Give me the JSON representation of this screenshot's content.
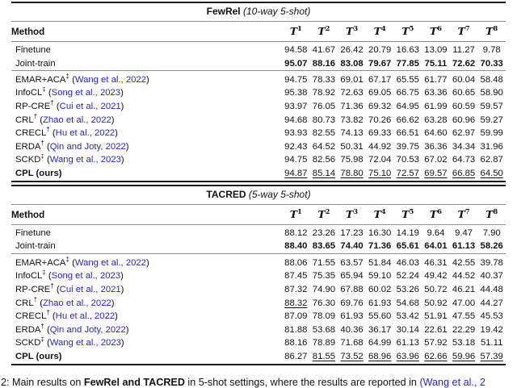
{
  "symbols": {
    "task": "T",
    "dagger": "†",
    "ddagger": "‡"
  },
  "caption": {
    "seg1": "2: Main results on ",
    "seg2": "FewRel and TACRED",
    "seg3": " in 5-shot settings, where the results are reported in ",
    "citation": "(Wang et al., 2"
  },
  "tables": [
    {
      "title": "FewRel",
      "setting": "(10-way 5-shot)",
      "method_header": "Method",
      "task_numbers": [
        "1",
        "2",
        "3",
        "4",
        "5",
        "6",
        "7",
        "8"
      ],
      "groups": [
        [
          {
            "method": "Finetune",
            "sup": "",
            "cite": "",
            "bold_method": false,
            "bold_values": false,
            "values": [
              "94.58",
              "41.67",
              "26.42",
              "20.79",
              "16.63",
              "13.09",
              "11.27",
              "9.78"
            ]
          },
          {
            "method": "Joint-train",
            "sup": "",
            "cite": "",
            "bold_method": false,
            "bold_values": true,
            "values": [
              "95.07",
              "88.16",
              "83.08",
              "79.67",
              "77.85",
              "75.11",
              "72.62",
              "70.33"
            ]
          }
        ],
        [
          {
            "method": "EMAR+ACA",
            "sup": "‡",
            "cite": "Wang et al., 2022",
            "bold_method": false,
            "bold_values": false,
            "values": [
              "94.75",
              "78.33",
              "69.01",
              "67.17",
              "65.55",
              "61.77",
              "60.04",
              "58.48"
            ]
          },
          {
            "method": "InfoCL",
            "sup": "‡",
            "cite": "Song et al., 2023",
            "bold_method": false,
            "bold_values": false,
            "values": [
              "95.38",
              "78.92",
              "72.63",
              "69.05",
              "66.75",
              "63.36",
              "60.65",
              "58.90"
            ]
          },
          {
            "method": "RP-CRE",
            "sup": "†",
            "cite": "Cui et al., 2021",
            "bold_method": false,
            "bold_values": false,
            "values": [
              "93.97",
              "76.05",
              "71.36",
              "69.32",
              "64.95",
              "61.99",
              "60.59",
              "59.57"
            ]
          },
          {
            "method": "CRL",
            "sup": "†",
            "cite": "Zhao et al., 2022",
            "bold_method": false,
            "bold_values": false,
            "values": [
              "94.68",
              "80.73",
              "73.82",
              "70.26",
              "66.62",
              "63.28",
              "60.96",
              "59.27"
            ]
          },
          {
            "method": "CRECL",
            "sup": "†",
            "cite": "Hu et al., 2022",
            "bold_method": false,
            "bold_values": false,
            "values": [
              "93.93",
              "82.55",
              "74.13",
              "69.33",
              "66.51",
              "64.60",
              "62.97",
              "59.99"
            ]
          },
          {
            "method": "ERDA",
            "sup": "†",
            "cite": "Qin and Joty, 2022",
            "bold_method": false,
            "bold_values": false,
            "values": [
              "92.43",
              "64.52",
              "50.31",
              "44.92",
              "39.75",
              "36.36",
              "34.34",
              "31.96"
            ]
          },
          {
            "method": "SCKD",
            "sup": "‡",
            "cite": "Wang et al., 2023",
            "bold_method": false,
            "bold_values": false,
            "values": [
              "94.75",
              "82.56",
              "75.98",
              "72.04",
              "70.53",
              "67.02",
              "64.73",
              "62.87"
            ]
          },
          {
            "method": "CPL (ours)",
            "sup": "",
            "cite": "",
            "bold_method": true,
            "bold_values": false,
            "underline": [
              true,
              true,
              true,
              true,
              true,
              true,
              true,
              true
            ],
            "values": [
              "94.87",
              "85.14",
              "78.80",
              "75.10",
              "72.57",
              "69.57",
              "66.85",
              "64.50"
            ]
          }
        ]
      ]
    },
    {
      "title": "TACRED",
      "setting": "(5-way 5-shot)",
      "method_header": "Method",
      "task_numbers": [
        "1",
        "2",
        "3",
        "4",
        "5",
        "6",
        "7",
        "8"
      ],
      "groups": [
        [
          {
            "method": "Finetune",
            "sup": "",
            "cite": "",
            "bold_method": false,
            "bold_values": false,
            "values": [
              "88.12",
              "23.26",
              "17.23",
              "16.30",
              "14.19",
              "9.64",
              "9.47",
              "7.90"
            ]
          },
          {
            "method": "Joint-train",
            "sup": "",
            "cite": "",
            "bold_method": false,
            "bold_values": true,
            "values": [
              "88.40",
              "83.65",
              "74.40",
              "71.36",
              "65.61",
              "64.01",
              "61.13",
              "58.26"
            ]
          }
        ],
        [
          {
            "method": "EMAR+ACA",
            "sup": "‡",
            "cite": "Wang et al., 2022",
            "bold_method": false,
            "bold_values": false,
            "values": [
              "88.06",
              "71.55",
              "63.57",
              "51.84",
              "46.03",
              "46.31",
              "42.55",
              "39.78"
            ]
          },
          {
            "method": "InfoCL",
            "sup": "‡",
            "cite": "Song et al., 2023",
            "bold_method": false,
            "bold_values": false,
            "values": [
              "87.45",
              "75.35",
              "65.94",
              "59.10",
              "52.24",
              "49.42",
              "44.52",
              "40.37"
            ]
          },
          {
            "method": "RP-CRE",
            "sup": "†",
            "cite": "Cui et al., 2021",
            "bold_method": false,
            "bold_values": false,
            "values": [
              "87.32",
              "74.90",
              "67.88",
              "60.02",
              "53.26",
              "50.72",
              "46.21",
              "44.48"
            ]
          },
          {
            "method": "CRL",
            "sup": "†",
            "cite": "Zhao et al., 2022",
            "bold_method": false,
            "bold_values": false,
            "underline": [
              true,
              false,
              false,
              false,
              false,
              false,
              false,
              false
            ],
            "values": [
              "88.32",
              "76.30",
              "69.76",
              "61.93",
              "54.68",
              "50.92",
              "47.00",
              "44.27"
            ]
          },
          {
            "method": "CRECL",
            "sup": "†",
            "cite": "Hu et al., 2022",
            "bold_method": false,
            "bold_values": false,
            "values": [
              "87.09",
              "78.09",
              "61.93",
              "55.60",
              "53.42",
              "51.91",
              "47.55",
              "45.53"
            ]
          },
          {
            "method": "ERDA",
            "sup": "†",
            "cite": "Qin and Joty, 2022",
            "bold_method": false,
            "bold_values": false,
            "values": [
              "81.88",
              "53.68",
              "40.36",
              "36.17",
              "30.14",
              "22.61",
              "22.29",
              "19.42"
            ]
          },
          {
            "method": "SCKD",
            "sup": "‡",
            "cite": "Wang et al., 2023",
            "bold_method": false,
            "bold_values": false,
            "values": [
              "88.16",
              "78.89",
              "71.68",
              "64.99",
              "61.13",
              "57.92",
              "53.18",
              "51.11"
            ]
          },
          {
            "method": "CPL (ours)",
            "sup": "",
            "cite": "",
            "bold_method": true,
            "bold_values": false,
            "underline": [
              false,
              true,
              true,
              true,
              true,
              true,
              true,
              true
            ],
            "values": [
              "86.27",
              "81.55",
              "73.52",
              "68.96",
              "63.96",
              "62.66",
              "59.96",
              "57.39"
            ]
          }
        ]
      ]
    }
  ]
}
